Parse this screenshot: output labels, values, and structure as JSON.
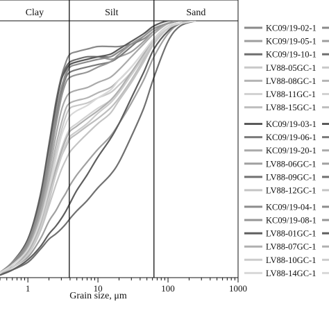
{
  "chart_data": {
    "type": "line",
    "xscale": "log",
    "xlim": [
      0.4,
      1000
    ],
    "xlabel": "Grain size, μm",
    "x_ticks": [
      {
        "value": 1,
        "label": "1"
      },
      {
        "value": 10,
        "label": "10"
      },
      {
        "value": 100,
        "label": "100"
      },
      {
        "value": 1000,
        "label": "1000"
      }
    ],
    "ylim": [
      0,
      100
    ],
    "zones": [
      {
        "label": "Clay",
        "from": 0.4,
        "to": 3.9
      },
      {
        "label": "Silt",
        "from": 3.9,
        "to": 63
      },
      {
        "label": "Sand",
        "from": 63,
        "to": 1000
      }
    ],
    "boundaries": [
      3.9,
      63
    ],
    "x": [
      0.4,
      0.6,
      1,
      1.5,
      2,
      2.5,
      3,
      3.5,
      4,
      5,
      7,
      10,
      15,
      20,
      30,
      45,
      63,
      100,
      150,
      250
    ],
    "series": [
      {
        "name": "KC09/19-02-1",
        "color": "#8a8a8a",
        "values": [
          2,
          6,
          14,
          30,
          50,
          66,
          78,
          84,
          87,
          88,
          89,
          90,
          90,
          90,
          91,
          93,
          96,
          99,
          100,
          100
        ]
      },
      {
        "name": "KC09/19-05-1",
        "color": "#9e9e9e",
        "values": [
          2,
          5,
          12,
          26,
          45,
          61,
          73,
          80,
          83,
          84,
          85,
          86,
          85,
          86,
          88,
          92,
          96,
          99,
          100,
          100
        ]
      },
      {
        "name": "KC09/19-10-1",
        "color": "#6e6e6e",
        "values": [
          2,
          6,
          15,
          32,
          52,
          68,
          78,
          82,
          84,
          85,
          86,
          86,
          86,
          88,
          91,
          94,
          97,
          99,
          100,
          100
        ]
      },
      {
        "name": "LV88-05GC-1",
        "color": "#c8c8c8",
        "values": [
          2,
          5,
          11,
          22,
          36,
          48,
          57,
          63,
          66,
          67,
          68,
          70,
          72,
          75,
          80,
          86,
          92,
          97,
          99,
          100
        ]
      },
      {
        "name": "LV88-08GC-1",
        "color": "#b4b4b4",
        "values": [
          2,
          5,
          11,
          23,
          38,
          51,
          60,
          66,
          68,
          69,
          70,
          72,
          74,
          77,
          82,
          88,
          93,
          98,
          99,
          100
        ]
      },
      {
        "name": "LV88-11GC-1",
        "color": "#d2d2d2",
        "values": [
          2,
          4,
          10,
          20,
          33,
          43,
          50,
          55,
          58,
          60,
          63,
          66,
          69,
          73,
          79,
          86,
          92,
          97,
          99,
          100
        ]
      },
      {
        "name": "LV88-15GC-1",
        "color": "#bebebe",
        "values": [
          2,
          4,
          9,
          18,
          30,
          40,
          47,
          51,
          54,
          56,
          59,
          62,
          66,
          70,
          77,
          85,
          92,
          97,
          99,
          100
        ]
      },
      {
        "name": "KC09/19-03-1",
        "color": "#5a5a5a",
        "values": [
          2,
          6,
          15,
          31,
          51,
          67,
          77,
          81,
          83,
          84,
          85,
          86,
          87,
          89,
          92,
          95,
          98,
          100,
          100,
          100
        ]
      },
      {
        "name": "KC09/19-06-1",
        "color": "#7a7a7a",
        "values": [
          2,
          5,
          14,
          28,
          46,
          61,
          72,
          78,
          80,
          81,
          82,
          83,
          84,
          86,
          90,
          94,
          97,
          99,
          100,
          100
        ]
      },
      {
        "name": "KC09/19-20-1",
        "color": "#aaaaaa",
        "values": [
          2,
          5,
          12,
          25,
          41,
          55,
          65,
          70,
          72,
          73,
          74,
          76,
          78,
          81,
          86,
          91,
          95,
          99,
          100,
          100
        ]
      },
      {
        "name": "LV88-06GC-1",
        "color": "#a0a0a0",
        "values": [
          1,
          4,
          8,
          15,
          22,
          26,
          30,
          33,
          36,
          40,
          45,
          50,
          55,
          60,
          68,
          77,
          86,
          95,
          99,
          100
        ]
      },
      {
        "name": "LV88-09GC-1",
        "color": "#707070",
        "values": [
          1,
          3,
          6,
          11,
          15,
          17,
          19,
          21,
          23,
          26,
          30,
          35,
          40,
          45,
          55,
          66,
          78,
          92,
          98,
          100
        ]
      },
      {
        "name": "LV88-12GC-1",
        "color": "#c4c4c4",
        "values": [
          2,
          4,
          9,
          18,
          28,
          36,
          42,
          46,
          49,
          52,
          56,
          60,
          64,
          69,
          76,
          84,
          91,
          97,
          99,
          100
        ]
      },
      {
        "name": "KC09/19-04-1",
        "color": "#8c8c8c",
        "values": [
          2,
          6,
          14,
          29,
          48,
          63,
          74,
          79,
          82,
          83,
          84,
          85,
          86,
          88,
          91,
          94,
          97,
          99,
          100,
          100
        ]
      },
      {
        "name": "KC09/19-08-1",
        "color": "#969696",
        "values": [
          2,
          5,
          13,
          27,
          44,
          59,
          70,
          76,
          78,
          79,
          80,
          82,
          84,
          87,
          91,
          94,
          97,
          99,
          100,
          100
        ]
      },
      {
        "name": "LV88-01GC-1",
        "color": "#5e5e5e",
        "values": [
          1,
          3,
          7,
          12,
          17,
          20,
          23,
          26,
          29,
          34,
          40,
          47,
          54,
          60,
          70,
          80,
          89,
          96,
          99,
          100
        ]
      },
      {
        "name": "LV88-07GC-1",
        "color": "#b0b0b0",
        "values": [
          2,
          4,
          10,
          20,
          32,
          42,
          49,
          54,
          57,
          59,
          62,
          65,
          69,
          73,
          80,
          87,
          93,
          98,
          99,
          100
        ]
      },
      {
        "name": "LV88-10GC-1",
        "color": "#cccccc",
        "values": [
          2,
          4,
          9,
          19,
          31,
          40,
          47,
          52,
          55,
          57,
          60,
          64,
          68,
          72,
          79,
          86,
          92,
          97,
          99,
          100
        ]
      },
      {
        "name": "LV88-14GC-1",
        "color": "#d8d8d8",
        "values": [
          2,
          5,
          11,
          22,
          35,
          46,
          55,
          60,
          63,
          65,
          67,
          70,
          73,
          77,
          82,
          88,
          93,
          98,
          99,
          100
        ]
      }
    ],
    "legend_placement": "right",
    "legend_groups": [
      7,
      6,
      6
    ]
  }
}
